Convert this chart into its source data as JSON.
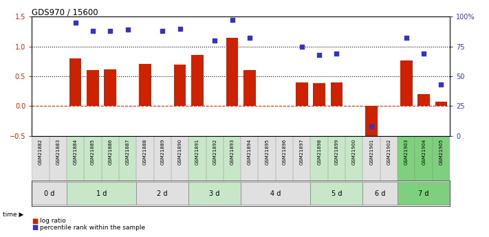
{
  "title": "GDS970 / 15600",
  "samples": [
    "GSM21882",
    "GSM21883",
    "GSM21884",
    "GSM21885",
    "GSM21886",
    "GSM21887",
    "GSM21888",
    "GSM21889",
    "GSM21890",
    "GSM21891",
    "GSM21892",
    "GSM21893",
    "GSM21894",
    "GSM21895",
    "GSM21896",
    "GSM21897",
    "GSM21898",
    "GSM21899",
    "GSM21900",
    "GSM21901",
    "GSM21902",
    "GSM21903",
    "GSM21904",
    "GSM21905"
  ],
  "log_ratio": [
    0.0,
    0.0,
    0.8,
    0.6,
    0.61,
    0.0,
    0.71,
    0.0,
    0.69,
    0.86,
    0.0,
    1.15,
    0.6,
    0.0,
    0.0,
    0.4,
    0.38,
    0.4,
    0.0,
    -0.52,
    0.0,
    0.77,
    0.2,
    0.07
  ],
  "percentile": [
    null,
    null,
    95,
    88,
    88,
    89,
    null,
    88,
    90,
    null,
    80,
    97,
    82,
    null,
    null,
    75,
    68,
    69,
    null,
    8,
    null,
    82,
    69,
    43
  ],
  "time_groups": [
    {
      "label": "0 d",
      "start": 0,
      "end": 2,
      "color": "#e0e0e0"
    },
    {
      "label": "1 d",
      "start": 2,
      "end": 6,
      "color": "#c8e6c8"
    },
    {
      "label": "2 d",
      "start": 6,
      "end": 9,
      "color": "#e0e0e0"
    },
    {
      "label": "3 d",
      "start": 9,
      "end": 12,
      "color": "#c8e6c8"
    },
    {
      "label": "4 d",
      "start": 12,
      "end": 16,
      "color": "#e0e0e0"
    },
    {
      "label": "5 d",
      "start": 16,
      "end": 19,
      "color": "#c8e6c8"
    },
    {
      "label": "6 d",
      "start": 19,
      "end": 21,
      "color": "#e0e0e0"
    },
    {
      "label": "7 d",
      "start": 21,
      "end": 24,
      "color": "#7ecf7e"
    }
  ],
  "ylim_left": [
    -0.5,
    1.5
  ],
  "ylim_right": [
    0,
    100
  ],
  "bar_color": "#cc2200",
  "dot_color": "#3333cc",
  "hline_zero_color": "#cc2200",
  "hline_dotted_values": [
    0.5,
    1.0
  ],
  "legend_log_ratio": "log ratio",
  "legend_percentile": "percentile rank within the sample",
  "yticks_left": [
    -0.5,
    0.0,
    0.5,
    1.0,
    1.5
  ],
  "yticks_right": [
    0,
    25,
    50,
    75,
    100
  ],
  "ytick_labels_right": [
    "0",
    "25",
    "50",
    "75",
    "100%"
  ]
}
